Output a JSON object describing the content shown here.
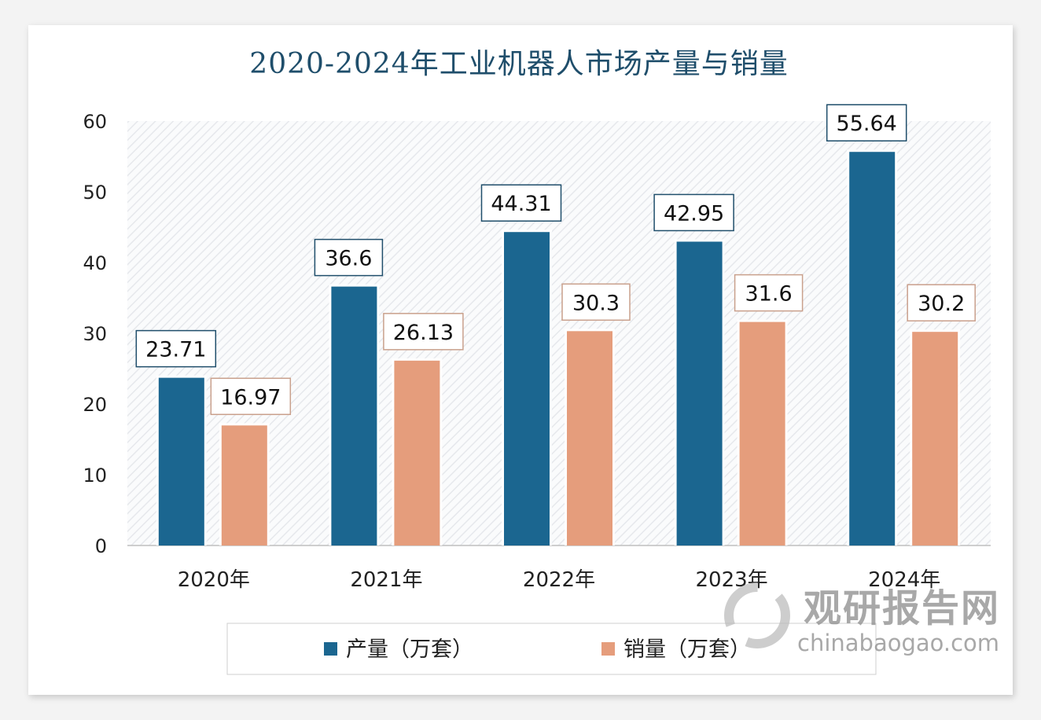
{
  "chart_data": {
    "type": "bar",
    "title": "2020-2024年工业机器人市场产量与销量",
    "categories": [
      "2020年",
      "2021年",
      "2022年",
      "2023年",
      "2024年"
    ],
    "series": [
      {
        "name": "产量（万套）",
        "color": "#1b6690",
        "values": [
          23.71,
          36.6,
          44.31,
          42.95,
          55.64
        ],
        "labels": [
          "23.71",
          "36.6",
          "44.31",
          "42.95",
          "55.64"
        ]
      },
      {
        "name": "销量（万套）",
        "color": "#e59d7c",
        "values": [
          16.97,
          26.13,
          30.3,
          31.6,
          30.2
        ],
        "labels": [
          "16.97",
          "26.13",
          "30.3",
          "31.6",
          "30.2"
        ]
      }
    ],
    "ylim": [
      0,
      60
    ],
    "yticks": [
      "0",
      "10",
      "20",
      "30",
      "40",
      "50",
      "60"
    ],
    "grid": false,
    "background": "diagonal hatch",
    "legend": "bottom",
    "title_color": "#1f4e6b"
  },
  "watermark": {
    "cn": "观研报告网",
    "en": "chinabaogao.com"
  }
}
